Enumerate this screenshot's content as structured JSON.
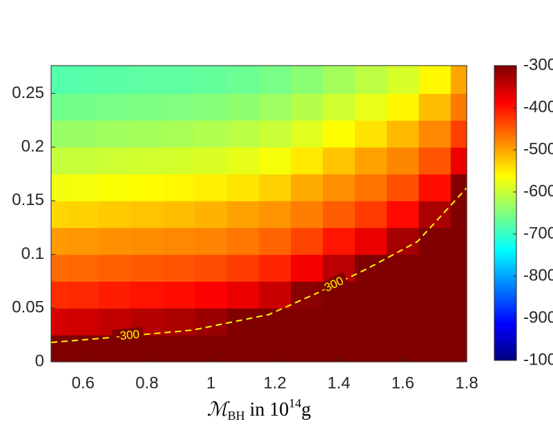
{
  "chart_data": {
    "type": "heatmap",
    "xlabel": {
      "symbol": "ℳ",
      "sub": "BH",
      "text": " in 10",
      "sup": "14",
      "unit": "g"
    },
    "x": [
      0.5,
      0.6,
      0.7,
      0.8,
      0.9,
      1.0,
      1.1,
      1.2,
      1.3,
      1.4,
      1.5,
      1.6,
      1.7,
      1.8
    ],
    "y": [
      0.0125,
      0.0375,
      0.0625,
      0.0875,
      0.1125,
      0.1375,
      0.1625,
      0.1875,
      0.2125,
      0.2375,
      0.2625
    ],
    "z": [
      [
        -300,
        -300,
        -300,
        -300,
        -300,
        -300,
        -300,
        -300,
        -300,
        -300,
        -300,
        -300,
        -300,
        -300
      ],
      [
        -360,
        -355,
        -346,
        -337,
        -330,
        -318,
        -300,
        -300,
        -300,
        -300,
        -300,
        -300,
        -300,
        -300
      ],
      [
        -418,
        -415,
        -407,
        -400,
        -397,
        -386,
        -374,
        -351,
        -308,
        -300,
        -300,
        -300,
        -300,
        -300
      ],
      [
        -461,
        -458,
        -453,
        -448,
        -445,
        -439,
        -429,
        -413,
        -381,
        -340,
        -300,
        -300,
        -300,
        -300
      ],
      [
        -493,
        -491,
        -487,
        -484,
        -481,
        -477,
        -469,
        -456,
        -434,
        -402,
        -374,
        -326,
        -300,
        -300
      ],
      [
        -535,
        -532,
        -526,
        -521,
        -517,
        -510,
        -499,
        -490,
        -473,
        -450,
        -428,
        -394,
        -330,
        -300
      ],
      [
        -572,
        -570,
        -565,
        -561,
        -558,
        -552,
        -544,
        -531,
        -504,
        -485,
        -468,
        -443,
        -397,
        -302
      ],
      [
        -603,
        -601,
        -597,
        -594,
        -591,
        -587,
        -579,
        -568,
        -548,
        -523,
        -499,
        -480,
        -445,
        -376
      ],
      [
        -633,
        -631,
        -627,
        -624,
        -621,
        -616,
        -609,
        -600,
        -583,
        -562,
        -543,
        -515,
        -481,
        -431
      ],
      [
        -660,
        -658,
        -655,
        -651,
        -649,
        -645,
        -639,
        -630,
        -613,
        -595,
        -578,
        -557,
        -517,
        -471
      ],
      [
        -681,
        -679,
        -676,
        -674,
        -673,
        -669,
        -664,
        -656,
        -642,
        -625,
        -608,
        -590,
        -558,
        -501
      ]
    ],
    "xlim": [
      0.5,
      1.8
    ],
    "ylim": [
      0,
      0.276
    ],
    "xticks": [
      0.6,
      0.8,
      1,
      1.2,
      1.4,
      1.6,
      1.8
    ],
    "yticks": [
      0,
      0.05,
      0.1,
      0.15,
      0.2,
      0.25
    ],
    "colormap": "jet",
    "clim": [
      -1000,
      -300
    ],
    "cticks": [
      -1000,
      -900,
      -800,
      -700,
      -600,
      -500,
      -400,
      -300
    ],
    "contour": {
      "level": -300,
      "color": "#ffff00",
      "x": [
        0.5,
        0.664,
        0.944,
        1.181,
        1.332,
        1.484,
        1.646,
        1.8
      ],
      "y": [
        0.018,
        0.022,
        0.0296,
        0.044,
        0.064,
        0.086,
        0.112,
        0.162
      ]
    }
  }
}
